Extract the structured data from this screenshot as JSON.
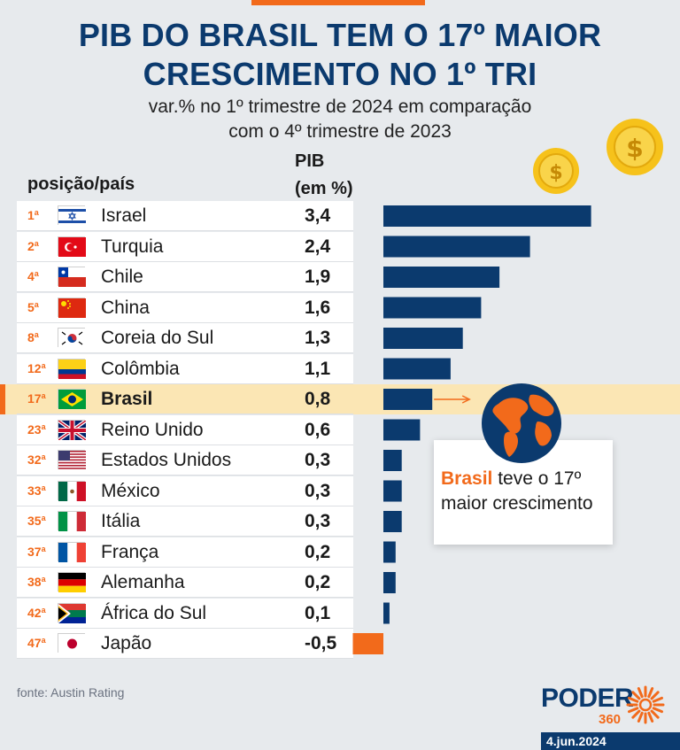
{
  "title_line1": "PIB DO BRASIL TEM O 17º MAIOR",
  "title_line2": "CRESCIMENTO NO 1º TRI",
  "subtitle_line1": "var.% no 1º trimestre de 2024 em comparação",
  "subtitle_line2": "com o 4º trimestre de 2023",
  "header_position_country": "posição/país",
  "header_value_line1": "PIB",
  "header_value_line2": "(em %)",
  "rows": [
    {
      "rank": "1",
      "ord": "a",
      "flag": "israel-flag",
      "country": "Israel",
      "value_text": "3,4"
    },
    {
      "rank": "2",
      "ord": "a",
      "flag": "turkey-flag",
      "country": "Turquia",
      "value_text": "2,4"
    },
    {
      "rank": "4",
      "ord": "a",
      "flag": "chile-flag",
      "country": "Chile",
      "value_text": "1,9"
    },
    {
      "rank": "5",
      "ord": "a",
      "flag": "china-flag",
      "country": "China",
      "value_text": "1,6"
    },
    {
      "rank": "8",
      "ord": "a",
      "flag": "south-korea-flag",
      "country": "Coreia do Sul",
      "value_text": "1,3"
    },
    {
      "rank": "12",
      "ord": "a",
      "flag": "colombia-flag",
      "country": "Colômbia",
      "value_text": "1,1"
    },
    {
      "rank": "17",
      "ord": "a",
      "flag": "brazil-flag",
      "country": "Brasil",
      "value_text": "0,8",
      "highlight": true
    },
    {
      "rank": "23",
      "ord": "a",
      "flag": "uk-flag",
      "country": "Reino Unido",
      "value_text": "0,6"
    },
    {
      "rank": "32",
      "ord": "a",
      "flag": "usa-flag",
      "country": "Estados Unidos",
      "value_text": "0,3"
    },
    {
      "rank": "33",
      "ord": "a",
      "flag": "mexico-flag",
      "country": "México",
      "value_text": "0,3"
    },
    {
      "rank": "35",
      "ord": "a",
      "flag": "italy-flag",
      "country": "Itália",
      "value_text": "0,3"
    },
    {
      "rank": "37",
      "ord": "a",
      "flag": "france-flag",
      "country": "França",
      "value_text": "0,2"
    },
    {
      "rank": "38",
      "ord": "a",
      "flag": "germany-flag",
      "country": "Alemanha",
      "value_text": "0,2"
    },
    {
      "rank": "42",
      "ord": "a",
      "flag": "south-africa-flag",
      "country": "África do Sul",
      "value_text": "0,1"
    },
    {
      "rank": "47",
      "ord": "a",
      "flag": "japan-flag",
      "country": "Japão",
      "value_text": "-0,5"
    }
  ],
  "chart_data": {
    "type": "bar",
    "orientation": "horizontal",
    "categories": [
      "Israel",
      "Turquia",
      "Chile",
      "China",
      "Coreia do Sul",
      "Colômbia",
      "Brasil",
      "Reino Unido",
      "Estados Unidos",
      "México",
      "Itália",
      "França",
      "Alemanha",
      "África do Sul",
      "Japão"
    ],
    "values": [
      3.4,
      2.4,
      1.9,
      1.6,
      1.3,
      1.1,
      0.8,
      0.6,
      0.3,
      0.3,
      0.3,
      0.2,
      0.2,
      0.1,
      -0.5
    ],
    "highlight_category": "Brasil",
    "grid": false,
    "colors": {
      "positive": "#0b3a6e",
      "negative": "#f26a1b"
    }
  },
  "callout": {
    "emphasis": "Brasil",
    "line1_rest": " teve o 17º",
    "line2": "maior crescimento"
  },
  "source": "fonte: Austin Rating",
  "logo_word": "PODER",
  "logo_number": "360",
  "date": "4.jun.2024",
  "colors": {
    "brand_blue": "#0b3a6e",
    "accent_orange": "#f26a1b",
    "highlight": "#fbe6b4",
    "background": "#e7eaed"
  }
}
